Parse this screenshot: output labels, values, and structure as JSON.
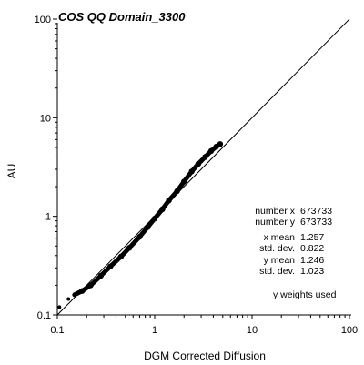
{
  "chart_data": {
    "type": "scatter",
    "title": "COS QQ Domain_3300",
    "xlabel": "DGM Corrected Diffusion",
    "ylabel": "AU",
    "x_scale": "log",
    "y_scale": "log",
    "xlim": [
      0.1,
      100
    ],
    "ylim": [
      0.1,
      100
    ],
    "x_ticks": [
      "0.1",
      "1",
      "10",
      "100"
    ],
    "y_ticks": [
      "0.1",
      "1",
      "10",
      "100"
    ],
    "grid": false,
    "reference_line": "y = x",
    "series": [
      {
        "x": [
          0.105,
          0.13,
          0.15,
          0.18,
          0.22,
          0.28,
          0.35,
          0.45,
          0.55,
          0.7,
          0.85,
          1.0,
          1.2,
          1.4,
          1.7,
          2.0,
          2.4,
          2.8,
          3.3,
          3.8,
          4.3,
          4.7
        ],
        "y": [
          0.12,
          0.145,
          0.16,
          0.175,
          0.2,
          0.25,
          0.31,
          0.39,
          0.48,
          0.62,
          0.78,
          0.95,
          1.18,
          1.45,
          1.8,
          2.25,
          2.85,
          3.4,
          4.0,
          4.6,
          5.1,
          5.4
        ]
      }
    ],
    "stats": {
      "number_x": {
        "label": "number x",
        "value": "673733"
      },
      "number_y": {
        "label": "number y",
        "value": "673733"
      },
      "x_mean": {
        "label": "x mean",
        "value": "1.257"
      },
      "x_std": {
        "label": "std. dev.",
        "value": "0.822"
      },
      "y_mean": {
        "label": "y mean",
        "value": "1.246"
      },
      "y_std": {
        "label": "std. dev.",
        "value": "1.023"
      },
      "note": "y weights used"
    }
  }
}
